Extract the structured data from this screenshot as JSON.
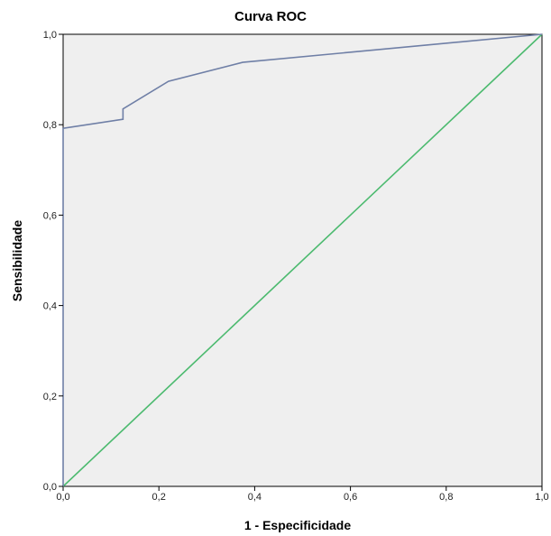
{
  "chart_data": {
    "type": "line",
    "title": "Curva ROC",
    "xlabel": "1 - Especificidade",
    "ylabel": "Sensibilidade",
    "xlim": [
      0,
      1
    ],
    "ylim": [
      0,
      1
    ],
    "x_ticks": [
      "0,0",
      "0,2",
      "0,4",
      "0,6",
      "0,8",
      "1,0"
    ],
    "y_ticks": [
      "0,0",
      "0,2",
      "0,4",
      "0,6",
      "0,8",
      "1,0"
    ],
    "x_tick_values": [
      0,
      0.2,
      0.4,
      0.6,
      0.8,
      1.0
    ],
    "y_tick_values": [
      0,
      0.2,
      0.4,
      0.6,
      0.8,
      1.0
    ],
    "grid": false,
    "background_color": "#efefef",
    "series": [
      {
        "color": "#6f7fa6",
        "x": [
          0.0,
          0.0,
          0.125,
          0.125,
          0.125,
          0.22,
          0.375,
          1.0
        ],
        "y": [
          0.0,
          0.792,
          0.812,
          0.812,
          0.835,
          0.896,
          0.938,
          1.0
        ]
      },
      {
        "color": "#4cba6f",
        "x": [
          0.0,
          1.0
        ],
        "y": [
          0.0,
          1.0
        ]
      }
    ]
  }
}
